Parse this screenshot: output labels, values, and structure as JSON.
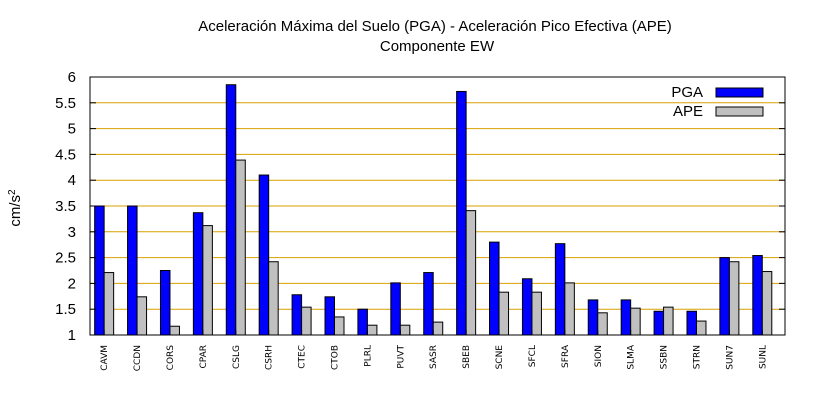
{
  "chart_data": {
    "type": "bar",
    "title": "Aceleración Máxima del Suelo (PGA) -  Aceleración Pico Efectiva (APE)",
    "subtitle": "Componente EW",
    "ylabel_base": "cm/s",
    "ylabel_exp": "2",
    "ylim": [
      1,
      6
    ],
    "yticks": [
      1,
      1.5,
      2,
      2.5,
      3,
      3.5,
      4,
      4.5,
      5,
      5.5,
      6
    ],
    "grid": true,
    "legend_position": "top-right",
    "categories": [
      "CAVM",
      "CCDN",
      "CORS",
      "CPAR",
      "CSLG",
      "CSRH",
      "CTEC",
      "CTOB",
      "PLRL",
      "PUVT",
      "SASR",
      "SBEB",
      "SCNE",
      "SFCL",
      "SFRA",
      "SION",
      "SLMA",
      "SSBN",
      "STRN",
      "SUN7",
      "SUNL"
    ],
    "series": [
      {
        "name": "PGA",
        "color": "#0000ff",
        "values": [
          3.5,
          3.5,
          2.25,
          3.37,
          5.85,
          4.1,
          1.78,
          1.74,
          1.5,
          2.01,
          2.21,
          5.72,
          2.8,
          2.09,
          2.77,
          1.68,
          1.68,
          1.46,
          1.46,
          2.5,
          2.54
        ]
      },
      {
        "name": "APE",
        "color": "#c0c0c0",
        "values": [
          2.21,
          1.74,
          1.17,
          3.12,
          4.39,
          2.42,
          1.54,
          1.35,
          1.19,
          1.19,
          1.25,
          3.41,
          1.83,
          1.83,
          2.01,
          1.43,
          1.52,
          1.54,
          1.27,
          2.42,
          2.23
        ]
      }
    ]
  }
}
